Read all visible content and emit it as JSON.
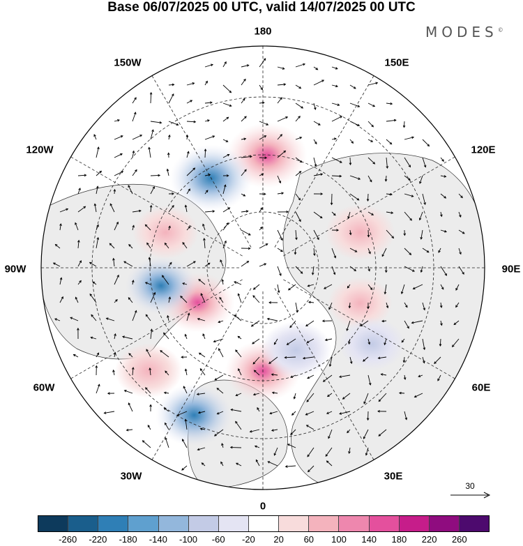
{
  "title": "Base 06/07/2025 00 UTC, valid 14/07/2025 00 UTC",
  "logo": "MODES",
  "logo_mark": "©",
  "longitude_labels": {
    "n180": "180",
    "e150": "150E",
    "e120": "120E",
    "e90": "90E",
    "e60": "60E",
    "e30": "30E",
    "n0": "0",
    "w30": "30W",
    "w60": "60W",
    "w90": "90W",
    "w120": "120W",
    "w150": "150W"
  },
  "reference_vector": {
    "label": "30"
  },
  "colorbar": {
    "colors": [
      "#0d3a5c",
      "#1a5e8c",
      "#2f7fb6",
      "#5fa0cf",
      "#93b7dc",
      "#c3cbe6",
      "#e4e4f3",
      "#ffffff",
      "#f8dcdc",
      "#f4b3bd",
      "#ee87ae",
      "#e4509d",
      "#c61d8a",
      "#8f0c7f",
      "#4d0a6e"
    ],
    "ticks": [
      "-260",
      "-220",
      "-180",
      "-140",
      "-100",
      "-60",
      "-20",
      "20",
      "60",
      "100",
      "140",
      "180",
      "220",
      "260"
    ]
  },
  "anomaly_blobs": [
    {
      "name": "pink-blob-north-pacific",
      "lon": 178,
      "lat": 52,
      "value": 150
    },
    {
      "name": "blue-blob-bering",
      "lon": -150,
      "lat": 55,
      "value": -160
    },
    {
      "name": "pink-blob-canada-west",
      "lon": -110,
      "lat": 55,
      "value": 60
    },
    {
      "name": "pink-blob-hudson",
      "lon": -62,
      "lat": 65,
      "value": 110
    },
    {
      "name": "blue-blob-labrador",
      "lon": -80,
      "lat": 55,
      "value": -100
    },
    {
      "name": "pink-blob-atlantic",
      "lon": -48,
      "lat": 38,
      "value": 70
    },
    {
      "name": "blue-blob-atlantic-south",
      "lon": -25,
      "lat": 35,
      "value": -130
    },
    {
      "name": "pink-blob-uk",
      "lon": 0,
      "lat": 55,
      "value": 120
    },
    {
      "name": "blue-blob-scandinavia",
      "lon": 22,
      "lat": 60,
      "value": -90
    },
    {
      "name": "pink-blob-siberia",
      "lon": 110,
      "lat": 55,
      "value": 80
    },
    {
      "name": "pink-blob-central-asia",
      "lon": 70,
      "lat": 55,
      "value": 50
    },
    {
      "name": "blue-blob-east-asia",
      "lon": 55,
      "lat": 45,
      "value": -60
    }
  ]
}
